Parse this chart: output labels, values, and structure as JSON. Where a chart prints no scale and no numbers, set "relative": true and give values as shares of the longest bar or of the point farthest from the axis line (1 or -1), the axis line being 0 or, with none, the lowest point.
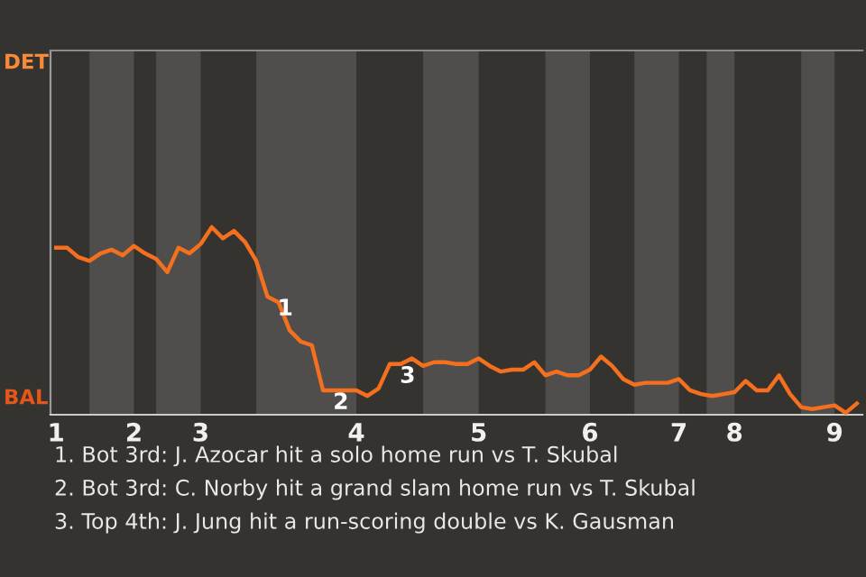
{
  "chart_data": {
    "type": "line",
    "relative": true,
    "categories": [
      "1",
      null,
      null,
      null,
      null,
      null,
      null,
      "2",
      null,
      null,
      null,
      null,
      null,
      "3",
      null,
      null,
      null,
      null,
      null,
      null,
      null,
      null,
      null,
      null,
      null,
      null,
      null,
      "4",
      null,
      null,
      null,
      null,
      null,
      null,
      null,
      null,
      null,
      null,
      "5",
      null,
      null,
      null,
      null,
      null,
      null,
      null,
      null,
      null,
      "6",
      null,
      null,
      null,
      null,
      null,
      null,
      null,
      "7",
      null,
      null,
      null,
      null,
      "8",
      null,
      null,
      null,
      null,
      null,
      null,
      null,
      null,
      "9",
      null,
      null
    ],
    "series": [
      {
        "color": "#f5701e",
        "values": [
          0.89,
          0.89,
          0.84,
          0.82,
          0.86,
          0.88,
          0.85,
          0.9,
          0.86,
          0.83,
          0.76,
          0.89,
          0.86,
          0.91,
          1,
          0.94,
          0.98,
          0.92,
          0.82,
          0.63,
          0.6,
          0.45,
          0.39,
          0.37,
          0.13,
          0.13,
          0.13,
          0.13,
          0.1,
          0.14,
          0.27,
          0.27,
          0.3,
          0.26,
          0.28,
          0.28,
          0.27,
          0.27,
          0.3,
          0.26,
          0.23,
          0.24,
          0.24,
          0.28,
          0.21,
          0.23,
          0.21,
          0.21,
          0.24,
          0.31,
          0.26,
          0.19,
          0.16,
          0.17,
          0.17,
          0.17,
          0.19,
          0.13,
          0.11,
          0.1,
          0.11,
          0.12,
          0.18,
          0.13,
          0.13,
          0.21,
          0.11,
          0.04,
          0.03,
          0.04,
          0.05,
          0.01,
          0.06
        ]
      }
    ],
    "marker": "none",
    "line_style": "solid",
    "annotations": [
      "DET",
      "BAL",
      {
        "text": "1",
        "y": 0.63
      },
      {
        "text": "2",
        "y": 0.13
      },
      {
        "text": "3",
        "y": 0.27
      },
      "1. Bot 3rd: J. Azocar hit a solo home run vs T. Skubal",
      "2. Bot 3rd: C. Norby hit a grand slam home run vs T. Skubal",
      "3. Top 4th: J. Jung hit a run-scoring double vs K. Gausman"
    ]
  }
}
